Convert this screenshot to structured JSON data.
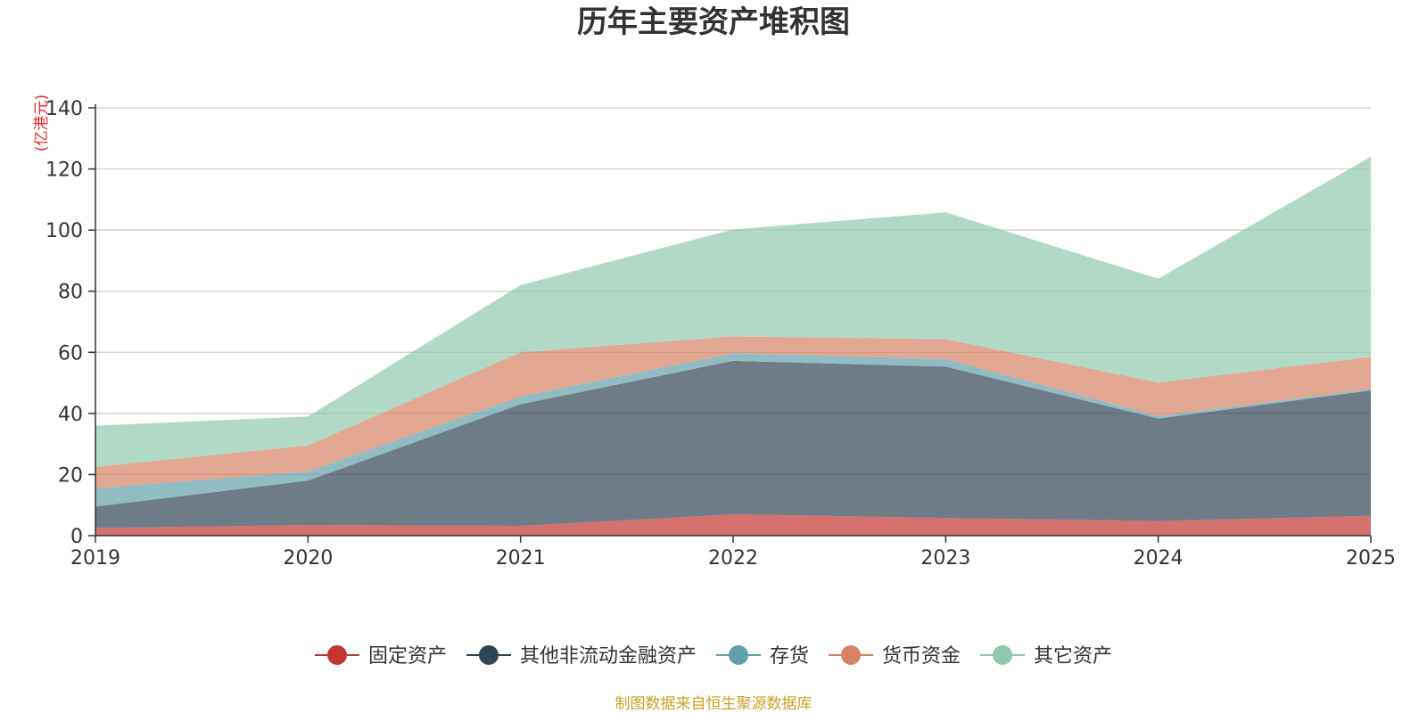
{
  "chart_data": {
    "type": "area",
    "stacked": true,
    "title": "历年主要资产堆积图",
    "ylabel": "(亿港元)",
    "xlabel": "",
    "categories": [
      "2019",
      "2020",
      "2021",
      "2022",
      "2023",
      "2024",
      "2025"
    ],
    "ylim": [
      0,
      140
    ],
    "yticks": [
      0,
      20,
      40,
      60,
      80,
      100,
      120,
      140
    ],
    "grid": true,
    "legend_position": "bottom",
    "series": [
      {
        "name": "固定资产",
        "color": "#c23531",
        "values": [
          2.5,
          3.5,
          3.2,
          7.0,
          5.8,
          4.8,
          6.5
        ]
      },
      {
        "name": "其他非流动金融资产",
        "color": "#2f4554",
        "values": [
          7.0,
          14.5,
          39.8,
          50.2,
          49.5,
          33.5,
          41.0
        ]
      },
      {
        "name": "存货",
        "color": "#61a0a8",
        "values": [
          6.0,
          3.0,
          2.5,
          2.5,
          2.5,
          0.8,
          0.5
        ]
      },
      {
        "name": "货币资金",
        "color": "#d48265",
        "values": [
          7.0,
          8.5,
          14.5,
          5.5,
          6.5,
          11.0,
          10.5
        ]
      },
      {
        "name": "其它资产",
        "color": "#91c7ae",
        "values": [
          13.5,
          9.5,
          22.0,
          35.0,
          41.5,
          34.0,
          65.5
        ]
      }
    ],
    "source": "制图数据来自恒生聚源数据库"
  }
}
